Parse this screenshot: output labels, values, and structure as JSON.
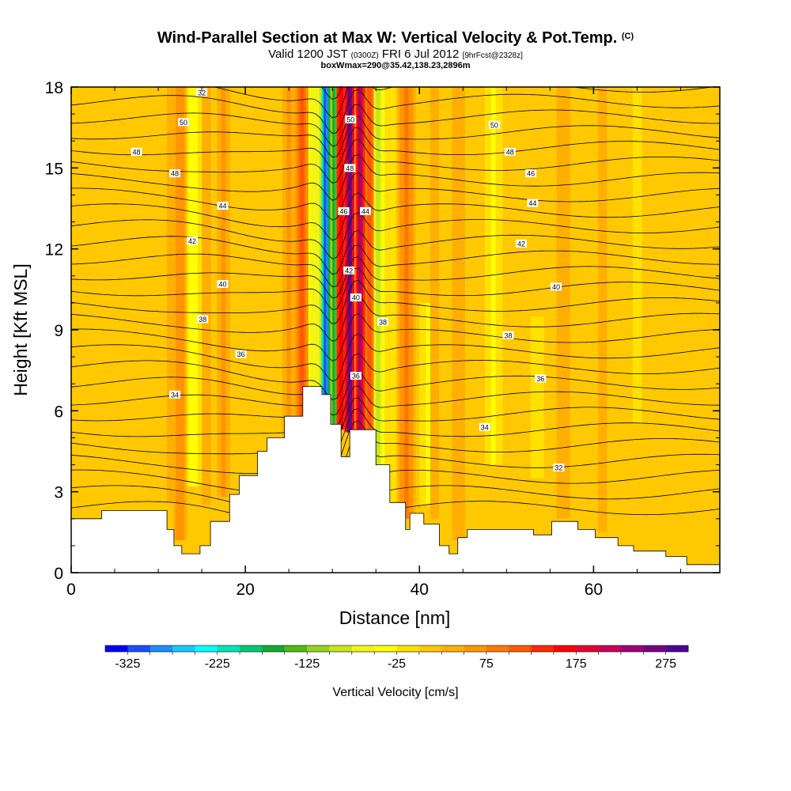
{
  "header": {
    "title": "Wind-Parallel Section at Max W: Vertical Velocity & Pot.Temp.",
    "title_mark": "(C)",
    "valid_prefix": "Valid 1200 JST",
    "valid_zulu": "(0300Z)",
    "valid_date": "FRI 6 Jul 2012",
    "forecast": "[9hrFcst@2328z]",
    "box_info": "boxWmax=290@35.42,138.23,2896m"
  },
  "chart_data": {
    "type": "heatmap",
    "title": "Wind-Parallel Section at Max W: Vertical Velocity & Pot.Temp.",
    "xlabel": "Distance [nm]",
    "ylabel": "Height [Kft MSL]",
    "xlim": [
      0,
      74.5
    ],
    "ylim": [
      0,
      18
    ],
    "x_ticks": [
      0,
      20,
      40,
      60
    ],
    "y_ticks": [
      0,
      3,
      6,
      9,
      12,
      15,
      18
    ],
    "grid": false,
    "colorbar": {
      "title": "Vertical Velocity [cm/s]",
      "position": "bottom",
      "range": [
        -350,
        300
      ],
      "step": 25,
      "labels": [
        -325,
        -225,
        -125,
        -25,
        75,
        175,
        275
      ],
      "colors": [
        "#0000ff",
        "#1450ff",
        "#1f8cff",
        "#14c8ff",
        "#00ffff",
        "#00e6b4",
        "#00c86e",
        "#14aa32",
        "#4bbe14",
        "#96d21e",
        "#c8e619",
        "#f0f514",
        "#ffff00",
        "#ffe100",
        "#ffc800",
        "#ffaf00",
        "#ff9600",
        "#ff7800",
        "#ff5a00",
        "#ff2800",
        "#ff0000",
        "#e60032",
        "#c8005a",
        "#a00078",
        "#780082",
        "#500096"
      ]
    },
    "vertical_velocity_columns": [
      {
        "x": 11.5,
        "w": 20,
        "band": [
          2.6,
          18
        ]
      },
      {
        "x": 12.5,
        "w": 55,
        "band": [
          1.2,
          18
        ]
      },
      {
        "x": 14.0,
        "w": -60,
        "band": [
          3.2,
          18
        ]
      },
      {
        "x": 15.5,
        "w": 20,
        "band": [
          2.5,
          18
        ]
      },
      {
        "x": 17.5,
        "w": 45,
        "band": [
          2.8,
          18
        ]
      },
      {
        "x": 25.0,
        "w": 45,
        "band": [
          3.6,
          18
        ]
      },
      {
        "x": 26.5,
        "w": 100,
        "band": [
          5.2,
          18
        ]
      },
      {
        "x": 28.0,
        "w": -80,
        "band": [
          6.0,
          18
        ]
      },
      {
        "x": 29.2,
        "w": -325,
        "band": [
          5.6,
          18
        ]
      },
      {
        "x": 30.2,
        "w": -175,
        "band": [
          5.4,
          18
        ]
      },
      {
        "x": 31.0,
        "w": 150,
        "band": [
          5.3,
          18
        ]
      },
      {
        "x": 32.0,
        "w": 275,
        "band": [
          5.2,
          18
        ]
      },
      {
        "x": 33.2,
        "w": 225,
        "band": [
          5.3,
          18
        ]
      },
      {
        "x": 34.3,
        "w": 100,
        "band": [
          5.3,
          18
        ]
      },
      {
        "x": 35.3,
        "w": -100,
        "band": [
          4.0,
          18
        ]
      },
      {
        "x": 36.5,
        "w": -25,
        "band": [
          2.5,
          18
        ]
      },
      {
        "x": 38.5,
        "w": 75,
        "band": [
          2.0,
          18
        ]
      },
      {
        "x": 41.5,
        "w": 40,
        "band": [
          2.0,
          18
        ]
      },
      {
        "x": 41.0,
        "w": -40,
        "band": [
          2.5,
          10
        ]
      },
      {
        "x": 44.5,
        "w": 40,
        "band": [
          1.2,
          18
        ]
      },
      {
        "x": 48.5,
        "w": -40,
        "band": [
          4.0,
          18
        ]
      },
      {
        "x": 53.5,
        "w": -35,
        "band": [
          3.5,
          9.5
        ]
      },
      {
        "x": 56.5,
        "w": 30,
        "band": [
          2.0,
          18
        ]
      },
      {
        "x": 61.0,
        "w": 20,
        "band": [
          1.5,
          18
        ]
      },
      {
        "x": 65.0,
        "w": -20,
        "band": [
          5.5,
          18
        ]
      },
      {
        "x": 72.0,
        "w": 15,
        "band": [
          1.0,
          18
        ]
      }
    ],
    "terrain": [
      [
        0,
        2
      ],
      [
        3.5,
        2
      ],
      [
        3.5,
        2.3
      ],
      [
        11,
        2.3
      ],
      [
        11,
        1.6
      ],
      [
        11.8,
        1.6
      ],
      [
        11.8,
        1.0
      ],
      [
        12.7,
        1.0
      ],
      [
        12.7,
        0.7
      ],
      [
        14.8,
        0.7
      ],
      [
        14.8,
        1.0
      ],
      [
        16.0,
        1.0
      ],
      [
        16.0,
        1.9
      ],
      [
        18.2,
        1.9
      ],
      [
        18.2,
        2.9
      ],
      [
        19.3,
        2.9
      ],
      [
        19.3,
        3.6
      ],
      [
        21.4,
        3.6
      ],
      [
        21.4,
        4.5
      ],
      [
        22.5,
        4.5
      ],
      [
        22.5,
        5.0
      ],
      [
        24.5,
        5.0
      ],
      [
        24.5,
        5.8
      ],
      [
        26.6,
        5.8
      ],
      [
        26.6,
        6.9
      ],
      [
        28.8,
        6.9
      ],
      [
        28.8,
        6.6
      ],
      [
        29.8,
        6.6
      ],
      [
        29.8,
        5.5
      ],
      [
        31.0,
        5.5
      ],
      [
        31.0,
        4.3
      ],
      [
        32.0,
        4.3
      ],
      [
        32.0,
        5.3
      ],
      [
        35.0,
        5.3
      ],
      [
        35.0,
        4.0
      ],
      [
        36.6,
        4.0
      ],
      [
        36.6,
        2.6
      ],
      [
        38.4,
        2.6
      ],
      [
        38.4,
        1.6
      ],
      [
        38.9,
        1.6
      ],
      [
        38.9,
        2.2
      ],
      [
        40.5,
        2.2
      ],
      [
        40.5,
        1.8
      ],
      [
        42.3,
        1.8
      ],
      [
        42.3,
        1.0
      ],
      [
        43.4,
        1.0
      ],
      [
        43.4,
        0.7
      ],
      [
        44.4,
        0.7
      ],
      [
        44.4,
        1.3
      ],
      [
        45.5,
        1.3
      ],
      [
        45.5,
        1.6
      ],
      [
        53.1,
        1.6
      ],
      [
        53.1,
        1.4
      ],
      [
        55.2,
        1.4
      ],
      [
        55.2,
        1.9
      ],
      [
        58.2,
        1.9
      ],
      [
        58.2,
        1.6
      ],
      [
        60.2,
        1.6
      ],
      [
        60.2,
        1.3
      ],
      [
        62.8,
        1.3
      ],
      [
        62.8,
        1.0
      ],
      [
        64.6,
        1.0
      ],
      [
        64.6,
        0.8
      ],
      [
        68.3,
        0.8
      ],
      [
        68.3,
        0.6
      ],
      [
        70.7,
        0.6
      ],
      [
        70.7,
        0.3
      ],
      [
        74.5,
        0.3
      ]
    ],
    "potential_temperature_labels": [
      {
        "text": "32",
        "x": 15.0,
        "y": 17.8
      },
      {
        "text": "50",
        "x": 12.9,
        "y": 16.7
      },
      {
        "text": "48",
        "x": 7.5,
        "y": 15.6
      },
      {
        "text": "48",
        "x": 11.9,
        "y": 14.8
      },
      {
        "text": "44",
        "x": 17.4,
        "y": 13.6
      },
      {
        "text": "42",
        "x": 13.9,
        "y": 12.3
      },
      {
        "text": "40",
        "x": 17.4,
        "y": 10.7
      },
      {
        "text": "38",
        "x": 15.1,
        "y": 9.4
      },
      {
        "text": "36",
        "x": 19.5,
        "y": 8.1
      },
      {
        "text": "34",
        "x": 11.9,
        "y": 6.6
      },
      {
        "text": "50",
        "x": 32.1,
        "y": 16.8
      },
      {
        "text": "48",
        "x": 32.0,
        "y": 15.0
      },
      {
        "text": "46",
        "x": 31.3,
        "y": 13.4
      },
      {
        "text": "44",
        "x": 33.8,
        "y": 13.4
      },
      {
        "text": "42",
        "x": 31.9,
        "y": 11.2
      },
      {
        "text": "40",
        "x": 32.7,
        "y": 10.2
      },
      {
        "text": "38",
        "x": 35.8,
        "y": 9.3
      },
      {
        "text": "36",
        "x": 32.7,
        "y": 7.3
      },
      {
        "text": "50",
        "x": 48.6,
        "y": 16.6
      },
      {
        "text": "48",
        "x": 50.4,
        "y": 15.6
      },
      {
        "text": "46",
        "x": 52.8,
        "y": 14.8
      },
      {
        "text": "44",
        "x": 53.0,
        "y": 13.7
      },
      {
        "text": "42",
        "x": 51.7,
        "y": 12.2
      },
      {
        "text": "40",
        "x": 55.7,
        "y": 10.6
      },
      {
        "text": "38",
        "x": 50.2,
        "y": 8.8
      },
      {
        "text": "36",
        "x": 53.9,
        "y": 7.2
      },
      {
        "text": "34",
        "x": 47.5,
        "y": 5.4
      },
      {
        "text": "32",
        "x": 56.0,
        "y": 3.9
      }
    ]
  }
}
